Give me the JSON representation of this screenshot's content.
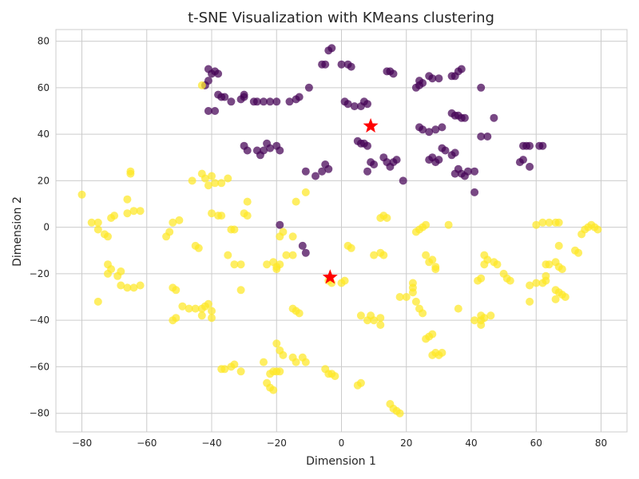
{
  "chart_data": {
    "type": "scatter",
    "title": "t-SNE Visualization with KMeans clustering",
    "xlabel": "Dimension 1",
    "ylabel": "Dimension 2",
    "xlim": [
      -88,
      88
    ],
    "ylim": [
      -88,
      85
    ],
    "xticks": [
      -80,
      -60,
      -40,
      -20,
      0,
      20,
      40,
      60,
      80
    ],
    "yticks": [
      -80,
      -60,
      -40,
      -20,
      0,
      20,
      40,
      60,
      80
    ],
    "grid": true,
    "legend": null,
    "colors": {
      "cluster_0": "#440154",
      "cluster_1": "#fde725",
      "centroid": "#ff0000"
    },
    "series": [
      {
        "cluster": 0,
        "color": "#440154",
        "points": [
          [
            -41,
            68
          ],
          [
            -40,
            66
          ],
          [
            -39,
            67
          ],
          [
            -38,
            66
          ],
          [
            -41,
            63
          ],
          [
            -42,
            61
          ],
          [
            -38,
            57
          ],
          [
            -37,
            56
          ],
          [
            -36,
            56
          ],
          [
            -34,
            54
          ],
          [
            -31,
            55
          ],
          [
            -30,
            57
          ],
          [
            -30,
            56
          ],
          [
            -27,
            54
          ],
          [
            -26,
            54
          ],
          [
            -24,
            54
          ],
          [
            -22,
            54
          ],
          [
            -20,
            54
          ],
          [
            -16,
            54
          ],
          [
            -14,
            55
          ],
          [
            -13,
            56
          ],
          [
            -10,
            60
          ],
          [
            -39,
            50
          ],
          [
            -41,
            50
          ],
          [
            -6,
            70
          ],
          [
            -5,
            70
          ],
          [
            -4,
            76
          ],
          [
            -3,
            77
          ],
          [
            0,
            70
          ],
          [
            2,
            70
          ],
          [
            3,
            69
          ],
          [
            1,
            54
          ],
          [
            2,
            53
          ],
          [
            4,
            52
          ],
          [
            6,
            52
          ],
          [
            7,
            54
          ],
          [
            8,
            53
          ],
          [
            14,
            67
          ],
          [
            15,
            67
          ],
          [
            16,
            66
          ],
          [
            23,
            60
          ],
          [
            24,
            61
          ],
          [
            24,
            63
          ],
          [
            25,
            62
          ],
          [
            27,
            65
          ],
          [
            28,
            64
          ],
          [
            30,
            64
          ],
          [
            34,
            65
          ],
          [
            35,
            65
          ],
          [
            36,
            67
          ],
          [
            37,
            68
          ],
          [
            43,
            60
          ],
          [
            -30,
            35
          ],
          [
            -29,
            33
          ],
          [
            -26,
            33
          ],
          [
            -25,
            31
          ],
          [
            -24,
            33
          ],
          [
            -23,
            36
          ],
          [
            -22,
            34
          ],
          [
            -20,
            35
          ],
          [
            -19,
            33
          ],
          [
            -11,
            24
          ],
          [
            -8,
            22
          ],
          [
            -6,
            24
          ],
          [
            -4,
            25
          ],
          [
            -5,
            27
          ],
          [
            5,
            37
          ],
          [
            6,
            36
          ],
          [
            7,
            36
          ],
          [
            8,
            35
          ],
          [
            9,
            28
          ],
          [
            10,
            27
          ],
          [
            8,
            24
          ],
          [
            13,
            30
          ],
          [
            14,
            28
          ],
          [
            16,
            28
          ],
          [
            17,
            29
          ],
          [
            15,
            26
          ],
          [
            19,
            20
          ],
          [
            24,
            43
          ],
          [
            25,
            42
          ],
          [
            27,
            41
          ],
          [
            29,
            42
          ],
          [
            31,
            43
          ],
          [
            31,
            34
          ],
          [
            32,
            33
          ],
          [
            27,
            29
          ],
          [
            28,
            30
          ],
          [
            29,
            28
          ],
          [
            30,
            29
          ],
          [
            34,
            49
          ],
          [
            35,
            48
          ],
          [
            36,
            48
          ],
          [
            37,
            47
          ],
          [
            38,
            47
          ],
          [
            47,
            47
          ],
          [
            43,
            39
          ],
          [
            45,
            39
          ],
          [
            34,
            31
          ],
          [
            35,
            32
          ],
          [
            36,
            25
          ],
          [
            35,
            23
          ],
          [
            37,
            23
          ],
          [
            38,
            22
          ],
          [
            39,
            24
          ],
          [
            41,
            24
          ],
          [
            41,
            15
          ],
          [
            56,
            35
          ],
          [
            57,
            35
          ],
          [
            58,
            35
          ],
          [
            61,
            35
          ],
          [
            62,
            35
          ],
          [
            56,
            29
          ],
          [
            55,
            28
          ],
          [
            58,
            26
          ],
          [
            -19,
            1
          ],
          [
            -12,
            -8
          ],
          [
            -11,
            -11
          ]
        ]
      },
      {
        "cluster": 1,
        "color": "#fde725",
        "points": [
          [
            -80,
            14
          ],
          [
            -77,
            2
          ],
          [
            -75,
            2
          ],
          [
            -75,
            -1
          ],
          [
            -73,
            -3
          ],
          [
            -72,
            -4
          ],
          [
            -71,
            4
          ],
          [
            -70,
            5
          ],
          [
            -66,
            6
          ],
          [
            -64,
            7
          ],
          [
            -62,
            7
          ],
          [
            -66,
            12
          ],
          [
            -65,
            24
          ],
          [
            -65,
            23
          ],
          [
            -54,
            -4
          ],
          [
            -53,
            -2
          ],
          [
            -52,
            2
          ],
          [
            -50,
            3
          ],
          [
            -72,
            -16
          ],
          [
            -71,
            -18
          ],
          [
            -72,
            -20
          ],
          [
            -69,
            -21
          ],
          [
            -68,
            -19
          ],
          [
            -68,
            -25
          ],
          [
            -66,
            -26
          ],
          [
            -64,
            -26
          ],
          [
            -62,
            -25
          ],
          [
            -75,
            -32
          ],
          [
            -52,
            -26
          ],
          [
            -51,
            -27
          ],
          [
            -52,
            -40
          ],
          [
            -51,
            -39
          ],
          [
            -49,
            -34
          ],
          [
            -47,
            -35
          ],
          [
            -45,
            -35
          ],
          [
            -43,
            -35
          ],
          [
            -42,
            -34
          ],
          [
            -41,
            -33
          ],
          [
            -40,
            -36
          ],
          [
            -43,
            -38
          ],
          [
            -40,
            -39
          ],
          [
            -45,
            -8
          ],
          [
            -44,
            -9
          ],
          [
            -46,
            20
          ],
          [
            -43,
            23
          ],
          [
            -42,
            21
          ],
          [
            -40,
            22
          ],
          [
            -41,
            18
          ],
          [
            -39,
            19
          ],
          [
            -37,
            19
          ],
          [
            -35,
            21
          ],
          [
            -40,
            6
          ],
          [
            -38,
            5
          ],
          [
            -37,
            5
          ],
          [
            -34,
            -1
          ],
          [
            -33,
            -1
          ],
          [
            -35,
            -12
          ],
          [
            -33,
            -16
          ],
          [
            -31,
            -16
          ],
          [
            -31,
            -27
          ],
          [
            -30,
            6
          ],
          [
            -29,
            5
          ],
          [
            -29,
            11
          ],
          [
            -23,
            -16
          ],
          [
            -21,
            -15
          ],
          [
            -20,
            -17
          ],
          [
            -20,
            -18
          ],
          [
            -19,
            -16
          ],
          [
            -17,
            -12
          ],
          [
            -15,
            -12
          ],
          [
            -15,
            -4
          ],
          [
            -19,
            -4
          ],
          [
            -18,
            -2
          ],
          [
            -15,
            -35
          ],
          [
            -14,
            -36
          ],
          [
            -13,
            -37
          ],
          [
            -14,
            11
          ],
          [
            -11,
            15
          ],
          [
            -20,
            -50
          ],
          [
            -19,
            -53
          ],
          [
            -18,
            -55
          ],
          [
            -20,
            -62
          ],
          [
            -22,
            -63
          ],
          [
            -21,
            -62
          ],
          [
            -19,
            -62
          ],
          [
            -23,
            -67
          ],
          [
            -22,
            -69
          ],
          [
            -21,
            -70
          ],
          [
            -24,
            -58
          ],
          [
            -15,
            -56
          ],
          [
            -14,
            -58
          ],
          [
            -12,
            -56
          ],
          [
            -11,
            -58
          ],
          [
            -37,
            -61
          ],
          [
            -36,
            -61
          ],
          [
            -34,
            -60
          ],
          [
            -33,
            -59
          ],
          [
            -31,
            -62
          ],
          [
            -5,
            -61
          ],
          [
            -4,
            -63
          ],
          [
            -3,
            -63
          ],
          [
            -2,
            -64
          ],
          [
            -4,
            -23
          ],
          [
            -3,
            -24
          ],
          [
            0,
            -24
          ],
          [
            1,
            -23
          ],
          [
            2,
            -8
          ],
          [
            3,
            -9
          ],
          [
            6,
            -38
          ],
          [
            8,
            -40
          ],
          [
            9,
            -38
          ],
          [
            10,
            -40
          ],
          [
            12,
            -39
          ],
          [
            12,
            -42
          ],
          [
            10,
            -12
          ],
          [
            12,
            -11
          ],
          [
            13,
            -12
          ],
          [
            12,
            4
          ],
          [
            13,
            5
          ],
          [
            14,
            4
          ],
          [
            6,
            -67
          ],
          [
            5,
            -68
          ],
          [
            15,
            -76
          ],
          [
            16,
            -78
          ],
          [
            17,
            -79
          ],
          [
            18,
            -80
          ],
          [
            22,
            -24
          ],
          [
            22,
            -26
          ],
          [
            22,
            -28
          ],
          [
            20,
            -30
          ],
          [
            18,
            -30
          ],
          [
            23,
            -32
          ],
          [
            24,
            -35
          ],
          [
            25,
            -37
          ],
          [
            23,
            -2
          ],
          [
            24,
            -1
          ],
          [
            25,
            0
          ],
          [
            26,
            1
          ],
          [
            26,
            -12
          ],
          [
            27,
            -15
          ],
          [
            28,
            -14
          ],
          [
            29,
            -17
          ],
          [
            29,
            -18
          ],
          [
            26,
            -48
          ],
          [
            27,
            -47
          ],
          [
            28,
            -46
          ],
          [
            29,
            -54
          ],
          [
            30,
            -55
          ],
          [
            31,
            -54
          ],
          [
            28,
            -55
          ],
          [
            33,
            1
          ],
          [
            36,
            -35
          ],
          [
            42,
            -23
          ],
          [
            43,
            -22
          ],
          [
            44,
            -12
          ],
          [
            45,
            -14
          ],
          [
            44,
            -16
          ],
          [
            47,
            -15
          ],
          [
            48,
            -16
          ],
          [
            50,
            -20
          ],
          [
            51,
            -22
          ],
          [
            52,
            -23
          ],
          [
            43,
            -38
          ],
          [
            44,
            -39
          ],
          [
            46,
            -38
          ],
          [
            43,
            -40
          ],
          [
            41,
            -40
          ],
          [
            43,
            -42
          ],
          [
            58,
            -25
          ],
          [
            60,
            -24
          ],
          [
            62,
            -24
          ],
          [
            63,
            -23
          ],
          [
            63,
            -21
          ],
          [
            63,
            -16
          ],
          [
            64,
            -16
          ],
          [
            66,
            -15
          ],
          [
            67,
            -17
          ],
          [
            66,
            -27
          ],
          [
            67,
            -28
          ],
          [
            68,
            -29
          ],
          [
            69,
            -30
          ],
          [
            66,
            -31
          ],
          [
            58,
            -32
          ],
          [
            60,
            1
          ],
          [
            62,
            2
          ],
          [
            64,
            2
          ],
          [
            66,
            2
          ],
          [
            67,
            2
          ],
          [
            67,
            -8
          ],
          [
            68,
            -18
          ],
          [
            72,
            -10
          ],
          [
            73,
            -11
          ],
          [
            74,
            -3
          ],
          [
            75,
            -1
          ],
          [
            76,
            0
          ],
          [
            77,
            1
          ],
          [
            78,
            0
          ],
          [
            79,
            -1
          ],
          [
            -43,
            61
          ]
        ]
      }
    ],
    "centroids": [
      [
        9,
        43.5
      ],
      [
        -3.5,
        -21.5
      ]
    ]
  }
}
